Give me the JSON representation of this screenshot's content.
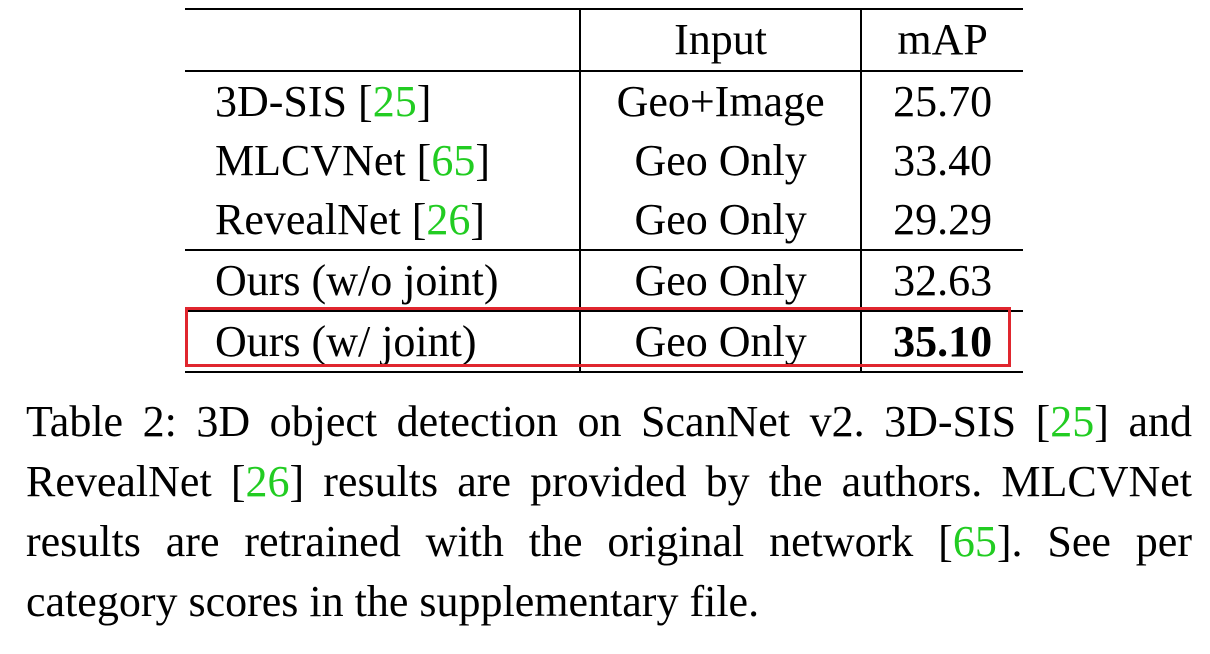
{
  "table": {
    "headers": [
      "",
      "Input",
      "mAP"
    ],
    "rows": [
      {
        "method": "3D-SIS [",
        "ref": "25",
        "close": "]",
        "input": "Geo+Image",
        "map": "25.70"
      },
      {
        "method": "MLCVNet [",
        "ref": "65",
        "close": "]",
        "input": "Geo Only",
        "map": "33.40"
      },
      {
        "method": "RevealNet [",
        "ref": "26",
        "close": "]",
        "input": "Geo Only",
        "map": "29.29"
      },
      {
        "method": "Ours (w/o joint)",
        "input": "Geo Only",
        "map": "32.63"
      },
      {
        "method": "Ours (w/ joint)",
        "input": "Geo Only",
        "map": "35.10"
      }
    ]
  },
  "caption": {
    "p1": "Table 2: 3D object detection on ScanNet v2. 3D-SIS [",
    "r1": "25",
    "p2": "] and RevealNet [",
    "r2": "26",
    "p3": "] results are provided by the authors. MLCVNet results are retrained with the original network [",
    "r3": "65",
    "p4": "]. See per category scores in the supplementary file."
  },
  "colors": {
    "citation": "#22cc22",
    "highlight_box": "#e0262e"
  }
}
